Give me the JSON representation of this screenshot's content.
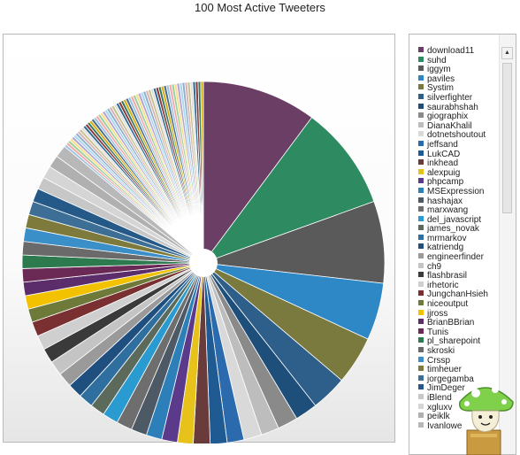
{
  "chart_data": {
    "type": "pie",
    "title": "100 Most Active Tweeters",
    "labels": [
      "download11",
      "suhd",
      "iggym",
      "paviles",
      "Systim",
      "silverfighter",
      "saurabhshah",
      "giographix",
      "DianaKhalil",
      "dotnetshoutout",
      "jeffsand",
      "LukCAD",
      "inkhead",
      "alexpuig",
      "phpcamp",
      "MSExpression",
      "hashajax",
      "marxwang",
      "del_javascript",
      "james_novak",
      "mrmarkov",
      "katriendg",
      "engineerfinder",
      "ch9",
      "flashbrasil",
      "irhetoric",
      "JungchanHsieh",
      "niceoutput",
      "jjross",
      "BrianBBrian",
      "Tunis",
      "pl_sharepoint",
      "skroski",
      "Crssp",
      "timheuer",
      "jorgegamba",
      "JimDeger",
      "iBlend",
      "xgluxv",
      "peiklk",
      "Ivanlowe"
    ],
    "values": [
      10.2,
      9.3,
      7.3,
      5.1,
      4.3,
      3.2,
      2.0,
      1.8,
      1.6,
      1.6,
      1.5,
      1.5,
      1.5,
      1.4,
      1.4,
      1.4,
      1.4,
      1.4,
      1.4,
      1.3,
      1.3,
      1.3,
      1.3,
      1.3,
      1.3,
      1.3,
      1.3,
      1.2,
      1.2,
      1.2,
      1.2,
      1.2,
      1.2,
      1.2,
      1.2,
      1.2,
      1.2,
      1.1,
      1.1,
      1.1,
      1.1
    ],
    "colors": [
      "#6b3e66",
      "#2e8b61",
      "#5a5a5a",
      "#2f88c6",
      "#7a7a3e",
      "#2e5f8a",
      "#1e4f7a",
      "#8a8a8a",
      "#bdbdbd",
      "#d9d9d9",
      "#2a6aad",
      "#1f5a92",
      "#6a3b3b",
      "#e6c21a",
      "#5b3a8c",
      "#2c7fb8",
      "#4d5a66",
      "#6e6e6e",
      "#2a9bd1",
      "#5c6a5c",
      "#2f6f9f",
      "#1f4f7f",
      "#9a9a9a",
      "#c4c4c4",
      "#3a3a3a",
      "#cfcfcf",
      "#7a3030",
      "#6e7a3a",
      "#f2c200",
      "#5b2d6b",
      "#6a2a55",
      "#2d7a4f",
      "#6a6a6a",
      "#3b8fc8",
      "#7d7a3c",
      "#3d6f96",
      "#255a88",
      "#c7c7c7",
      "#d5d5d5",
      "#b0b0b0",
      "#b8b8b8"
    ],
    "legend": "right"
  },
  "extra_slice_colors": [
    "#9ec3e0",
    "#f3a7a7",
    "#9dcf9d",
    "#f7df8a",
    "#b3a3d3",
    "#a7d7ef",
    "#8fb0c8",
    "#d9b3b3",
    "#c7c28d",
    "#e0e0e0",
    "#2f6d95",
    "#8a3a3a",
    "#3a7a60",
    "#d6ad12",
    "#4a6d8a"
  ]
}
